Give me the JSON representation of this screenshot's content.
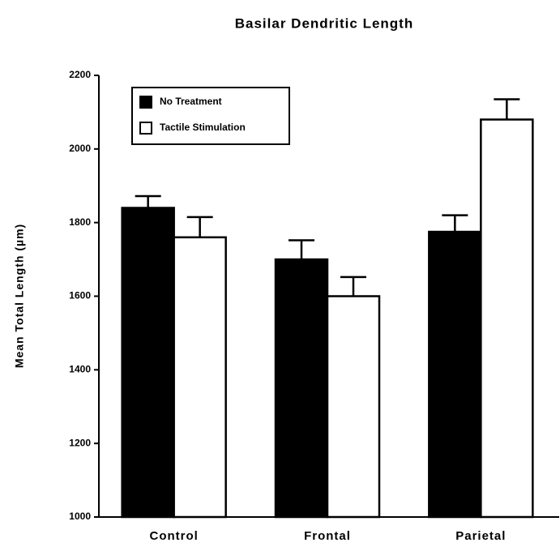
{
  "chart_data": {
    "type": "bar",
    "title": "Basilar Dendritic Length",
    "y_label": "Mean Total Length (µm)",
    "categories": [
      "Control",
      "Frontal",
      "Parietal"
    ],
    "series": [
      {
        "name": "No Treatment",
        "color": "#000000",
        "values": [
          1840,
          1700,
          1775
        ],
        "errors": [
          32,
          52,
          45
        ]
      },
      {
        "name": "Tactile Stimulation",
        "color": "#ffffff",
        "values": [
          1760,
          1600,
          2080
        ],
        "errors": [
          55,
          52,
          55
        ]
      }
    ],
    "ylim": [
      1000,
      2200
    ],
    "yticks": [
      1000,
      1200,
      1400,
      1600,
      1800,
      2000,
      2200
    ],
    "legend": "upper left"
  }
}
